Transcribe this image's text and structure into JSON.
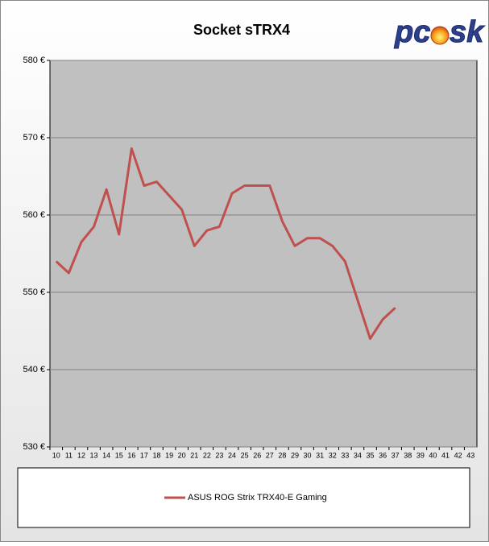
{
  "chart_data": {
    "type": "line",
    "title": "Socket sTRX4",
    "logo": {
      "left": "pc",
      "right": "sk"
    },
    "categories": [
      "10",
      "11",
      "12",
      "13",
      "14",
      "15",
      "16",
      "17",
      "18",
      "19",
      "20",
      "21",
      "22",
      "23",
      "24",
      "25",
      "26",
      "27",
      "28",
      "29",
      "30",
      "31",
      "32",
      "33",
      "34",
      "35",
      "36",
      "37",
      "38",
      "39",
      "40",
      "41",
      "42",
      "43"
    ],
    "series": [
      {
        "name": "ASUS ROG Strix TRX40-E Gaming",
        "color": "#c0504d",
        "values": [
          554,
          552.5,
          556.5,
          558.5,
          563.3,
          557.5,
          568.6,
          563.8,
          564.3,
          562.5,
          560.7,
          556,
          558,
          558.5,
          562.8,
          563.8,
          563.8,
          563.8,
          559.2,
          556,
          557,
          557,
          556,
          554,
          549,
          544,
          546.5,
          548,
          null,
          null,
          null,
          null,
          null,
          null
        ]
      }
    ],
    "ylim": [
      530,
      580
    ],
    "yticks": [
      {
        "value": 530,
        "label": "530 €"
      },
      {
        "value": 540,
        "label": "540 €"
      },
      {
        "value": 550,
        "label": "550 €"
      },
      {
        "value": 560,
        "label": "560 €"
      },
      {
        "value": 570,
        "label": "570 €"
      },
      {
        "value": 580,
        "label": "580 €"
      }
    ],
    "grid": true,
    "legend": "bottom"
  }
}
